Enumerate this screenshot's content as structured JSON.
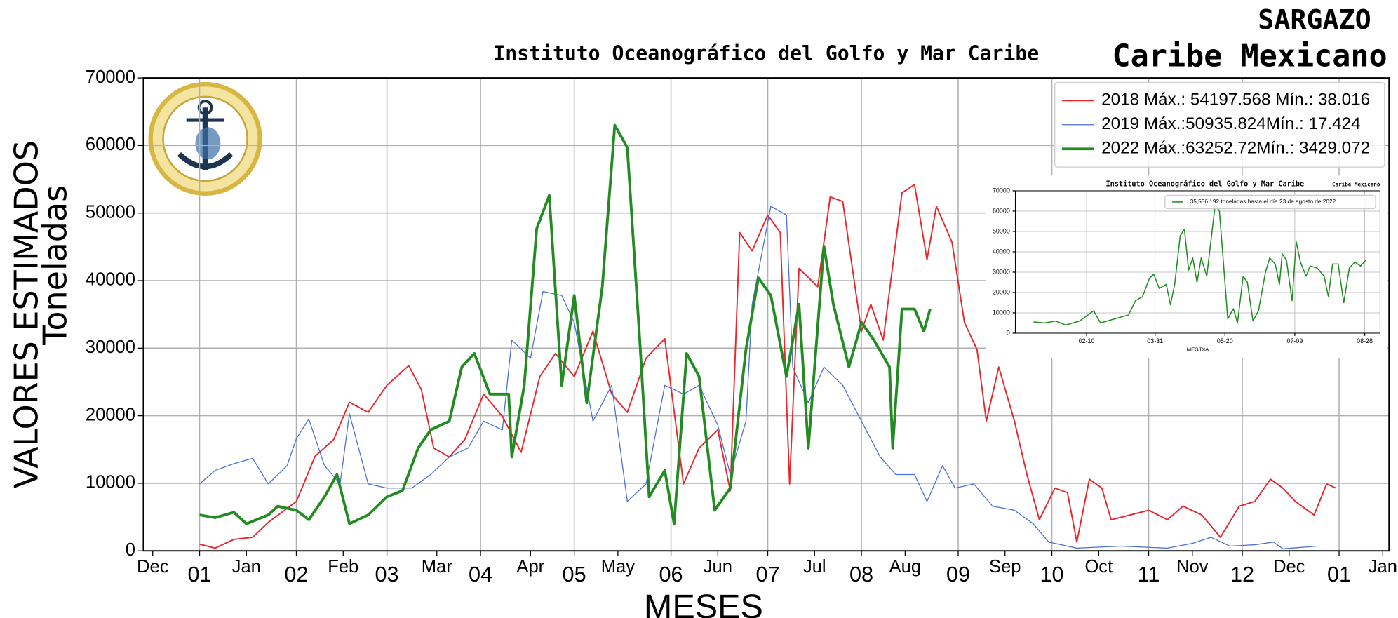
{
  "chart_data": [
    {
      "type": "line",
      "heading": [
        "SARGAZO",
        "Caribe Mexicano"
      ],
      "title": "Instituto Oceanográfico del Golfo y Mar Caribe",
      "ylabel": [
        "VALORES ESTIMADOS",
        "Toneladas"
      ],
      "xlabel": "MESES",
      "xlim": [
        -18,
        381
      ],
      "ylim": [
        0,
        70000
      ],
      "yticks": [
        0,
        10000,
        20000,
        30000,
        40000,
        50000,
        60000,
        70000
      ],
      "xticks": [
        {
          "value": 0,
          "label": "01"
        },
        {
          "value": 31,
          "label": "02"
        },
        {
          "value": 60,
          "label": "03"
        },
        {
          "value": 90,
          "label": "04"
        },
        {
          "value": 120,
          "label": "05"
        },
        {
          "value": 151,
          "label": "06"
        },
        {
          "value": 182,
          "label": "07"
        },
        {
          "value": 212,
          "label": "08"
        },
        {
          "value": 243,
          "label": "09"
        },
        {
          "value": 273,
          "label": "10"
        },
        {
          "value": 304,
          "label": "11"
        },
        {
          "value": 334,
          "label": "12"
        },
        {
          "value": 365,
          "label": "01"
        }
      ],
      "xticks_minor": [
        {
          "value": -15,
          "label": "Dec"
        },
        {
          "value": 15,
          "label": "Jan"
        },
        {
          "value": 46,
          "label": "Feb"
        },
        {
          "value": 76,
          "label": "Mar"
        },
        {
          "value": 106,
          "label": "Apr"
        },
        {
          "value": 134,
          "label": "May"
        },
        {
          "value": 166,
          "label": "Jun"
        },
        {
          "value": 197,
          "label": "Jul"
        },
        {
          "value": 226,
          "label": "Aug"
        },
        {
          "value": 258,
          "label": "Sep"
        },
        {
          "value": 288,
          "label": "Oct"
        },
        {
          "value": 318,
          "label": "Nov"
        },
        {
          "value": 349,
          "label": "Dec"
        },
        {
          "value": 379,
          "label": "Jan"
        }
      ],
      "grid": true,
      "legend": "upper right",
      "series": [
        {
          "name": "2018 Máx.: 54197.568 Mín.: 38.016",
          "color": "#e8262b",
          "linewidth": 1.5,
          "x": [
            0,
            5,
            11,
            17,
            22,
            31,
            37,
            43,
            48,
            54,
            60,
            67,
            71,
            75,
            80,
            85,
            91,
            97,
            103,
            109,
            114,
            120,
            126,
            132,
            137,
            143,
            149,
            155,
            160,
            166,
            170,
            173,
            177,
            182,
            186,
            189,
            192,
            198,
            202,
            206,
            212,
            215,
            219,
            225,
            229,
            233,
            236,
            241,
            245,
            249,
            252,
            256,
            261,
            265,
            269,
            274,
            278,
            281,
            285,
            289,
            292,
            298,
            304,
            310,
            315,
            321,
            327,
            333,
            338,
            343,
            347,
            351,
            357,
            361,
            364
          ],
          "values": [
            1000,
            400,
            1700,
            2000,
            4200,
            7300,
            14000,
            16500,
            22000,
            20500,
            24500,
            27400,
            23900,
            15200,
            13900,
            16500,
            23200,
            19900,
            14600,
            25800,
            29200,
            25800,
            32500,
            23200,
            20500,
            28500,
            31400,
            9900,
            15200,
            17900,
            8900,
            47100,
            44400,
            49700,
            47100,
            9900,
            41800,
            39100,
            52400,
            51700,
            32500,
            36500,
            31200,
            53000,
            54200,
            43100,
            51000,
            45700,
            33800,
            29800,
            19200,
            27200,
            19200,
            11300,
            4600,
            9300,
            8600,
            1300,
            10600,
            9300,
            4600,
            5300,
            6000,
            4600,
            6600,
            5300,
            2000,
            6600,
            7300,
            10600,
            9300,
            7300,
            5300,
            9900,
            9300
          ]
        },
        {
          "name": "2019 Máx.:50935.824Mín.: 17.424",
          "color": "#4a6fd6",
          "linewidth": 1,
          "x": [
            0,
            5,
            11,
            17,
            22,
            28,
            31,
            35,
            40,
            45,
            48,
            54,
            60,
            68,
            74,
            80,
            86,
            91,
            97,
            100,
            106,
            110,
            116,
            120,
            126,
            132,
            137,
            143,
            149,
            155,
            160,
            166,
            170,
            175,
            177,
            183,
            188,
            190,
            195,
            200,
            206,
            212,
            218,
            223,
            229,
            233,
            238,
            242,
            248,
            254,
            261,
            267,
            272,
            281,
            295,
            310,
            318,
            324,
            330,
            338,
            344,
            347,
            358
          ],
          "values": [
            9900,
            11900,
            12900,
            13700,
            9900,
            12600,
            16600,
            19500,
            12600,
            9900,
            20300,
            9900,
            9300,
            9300,
            11300,
            13900,
            15200,
            19200,
            17900,
            31200,
            28500,
            38400,
            37800,
            33800,
            19200,
            24500,
            7300,
            9900,
            24500,
            23200,
            24500,
            18600,
            11300,
            19200,
            36500,
            51000,
            49700,
            27200,
            21900,
            27200,
            24500,
            19200,
            13900,
            11300,
            11300,
            7300,
            12600,
            9300,
            9900,
            6600,
            6000,
            4000,
            1300,
            400,
            700,
            400,
            1100,
            2000,
            700,
            900,
            1300,
            300,
            700
          ]
        },
        {
          "name": "2022 Máx.:63252.72Mín.: 3429.072",
          "color": "#228b22",
          "linewidth": 3,
          "x": [
            0,
            5,
            11,
            15,
            22,
            25,
            31,
            35,
            40,
            44,
            48,
            54,
            60,
            65,
            70,
            74,
            80,
            84,
            88,
            93,
            99,
            100,
            104,
            108,
            112,
            116,
            120,
            124,
            129,
            133,
            137,
            141,
            144,
            149,
            152,
            156,
            160,
            165,
            170,
            175,
            179,
            183,
            188,
            192,
            195,
            200,
            203,
            208,
            212,
            216,
            221,
            222,
            225,
            229,
            232,
            234
          ],
          "values": [
            5300,
            4900,
            5700,
            4000,
            5300,
            6600,
            6000,
            4600,
            8000,
            11300,
            4000,
            5300,
            8000,
            8900,
            15200,
            17900,
            19200,
            27200,
            29200,
            23200,
            23200,
            13900,
            24500,
            47700,
            52600,
            24500,
            37800,
            21900,
            39100,
            63000,
            59700,
            31200,
            8000,
            11900,
            4000,
            29200,
            25800,
            6000,
            9300,
            29800,
            40400,
            37800,
            25800,
            36500,
            15200,
            45100,
            36500,
            27200,
            33800,
            31200,
            27200,
            15200,
            35800,
            35800,
            32500,
            35800
          ]
        }
      ]
    },
    {
      "type": "line",
      "title": "Instituto Oceanográfico del Golfo y Mar Caribe",
      "title_right": "Caribe Mexicano",
      "xlabel": "MES/DÍA",
      "xlim": [
        -11,
        250
      ],
      "ylim": [
        0,
        70000
      ],
      "yticks": [
        0,
        10000,
        20000,
        30000,
        40000,
        50000,
        60000,
        70000
      ],
      "xticks": [
        {
          "value": 40,
          "label": "02-10"
        },
        {
          "value": 89,
          "label": "03-31"
        },
        {
          "value": 139,
          "label": "05-20"
        },
        {
          "value": 189,
          "label": "07-09"
        },
        {
          "value": 239,
          "label": "08-28"
        }
      ],
      "grid": true,
      "legend": "upper right",
      "series": [
        {
          "name": "35,556.192 toneladas hasta el día 23 de agosto de 2022",
          "color": "#228b22",
          "linewidth": 1.2,
          "x": [
            2,
            10,
            18,
            25,
            35,
            45,
            50,
            60,
            70,
            75,
            80,
            85,
            88,
            92,
            97,
            100,
            103,
            107,
            110,
            113,
            116,
            119,
            122,
            126,
            128,
            132,
            135,
            138,
            141,
            145,
            148,
            152,
            155,
            159,
            163,
            168,
            171,
            175,
            178,
            180,
            183,
            187,
            190,
            193,
            197,
            200,
            205,
            210,
            213,
            216,
            220,
            224,
            228,
            232,
            236,
            240
          ],
          "values": [
            5500,
            5000,
            6000,
            4000,
            6000,
            11000,
            5000,
            7000,
            9000,
            16000,
            18000,
            27000,
            29000,
            22000,
            24000,
            14000,
            24000,
            48000,
            51000,
            31000,
            37000,
            25000,
            37000,
            28000,
            40000,
            63000,
            60000,
            34000,
            7000,
            12000,
            5000,
            28000,
            25000,
            6000,
            11000,
            30000,
            37000,
            34000,
            24000,
            39000,
            36000,
            16000,
            45000,
            35000,
            28000,
            33000,
            32000,
            28000,
            18000,
            34000,
            34000,
            15000,
            32000,
            35000,
            33000,
            36000
          ]
        }
      ]
    }
  ]
}
